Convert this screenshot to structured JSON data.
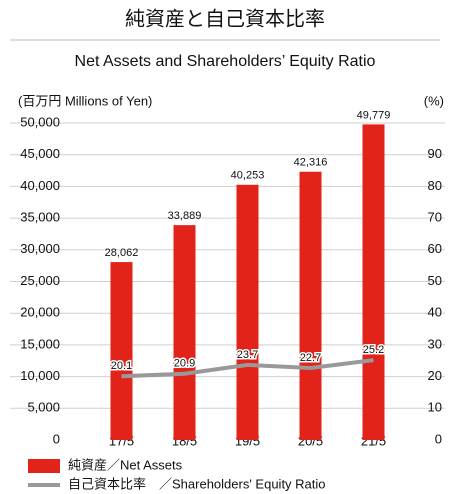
{
  "chart_data": {
    "type": "bar",
    "title": "純資産と自己資本比率",
    "subtitle": "Net Assets and Shareholders’ Equity Ratio",
    "y_axis_label": "(百万円 Millions of Yen)",
    "y2_axis_label": "(%)",
    "categories": [
      "17/5",
      "18/5",
      "19/5",
      "20/5",
      "21/5"
    ],
    "series": [
      {
        "name": "純資産／Net Assets",
        "type": "bar",
        "color": "#e2231a",
        "values": [
          28062,
          33889,
          40253,
          42316,
          49779
        ],
        "value_labels": [
          "28,062",
          "33,889",
          "40,253",
          "42,316",
          "49,779"
        ]
      },
      {
        "name": "自己資本比率　／Shareholders' Equity Ratio",
        "type": "line",
        "axis": "y2",
        "color": "#999999",
        "values": [
          20.1,
          20.9,
          23.7,
          22.7,
          25.2
        ]
      }
    ],
    "ylim": [
      0,
      50000
    ],
    "yticks": [
      0,
      {
        "value": 5000,
        "label": "5,000"
      },
      {
        "value": 10000,
        "label": "10,000"
      },
      {
        "value": 15000,
        "label": "15,000"
      },
      {
        "value": 20000,
        "label": "20,000"
      },
      {
        "value": 25000,
        "label": "25,000"
      },
      {
        "value": 30000,
        "label": "30,000"
      },
      {
        "value": 35000,
        "label": "35,000"
      },
      {
        "value": 40000,
        "label": "40,000"
      },
      {
        "value": 45000,
        "label": "45,000"
      },
      {
        "value": 50000,
        "label": "50,000"
      }
    ],
    "y2lim": [
      0,
      100
    ],
    "y2ticks": [
      0,
      10,
      20,
      30,
      40,
      50,
      60,
      70,
      80,
      90
    ],
    "grid": true
  }
}
